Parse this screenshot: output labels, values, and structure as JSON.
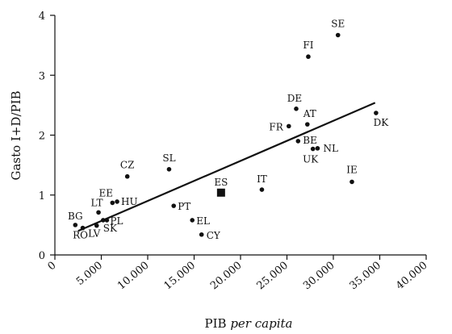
{
  "chart_data": {
    "type": "scatter",
    "title": "",
    "xlabel_main": "PIB ",
    "xlabel_italic": "per capita",
    "ylabel": "Gasto I+D/PIB",
    "xlim": [
      0,
      40000
    ],
    "ylim": [
      0,
      4
    ],
    "x_ticks": [
      0,
      5000,
      10000,
      15000,
      20000,
      25000,
      30000,
      35000,
      40000
    ],
    "x_tick_labels": [
      "0",
      "5.000",
      "10.000",
      "15.000",
      "20.000",
      "25.000",
      "30.000",
      "35.000",
      "40.000"
    ],
    "y_ticks": [
      0,
      1,
      2,
      3,
      4
    ],
    "y_tick_labels": [
      "0",
      "1",
      "2",
      "3",
      "4"
    ],
    "grid": false,
    "points": [
      {
        "label": "SE",
        "x": 30500,
        "y": 3.67
      },
      {
        "label": "FI",
        "x": 27300,
        "y": 3.31
      },
      {
        "label": "DE",
        "x": 26000,
        "y": 2.44
      },
      {
        "label": "DK",
        "x": 34600,
        "y": 2.37
      },
      {
        "label": "AT",
        "x": 27200,
        "y": 2.18
      },
      {
        "label": "FR",
        "x": 25200,
        "y": 2.15
      },
      {
        "label": "BE",
        "x": 26200,
        "y": 1.9
      },
      {
        "label": "NL",
        "x": 28300,
        "y": 1.78
      },
      {
        "label": "UK",
        "x": 27800,
        "y": 1.77
      },
      {
        "label": "IE",
        "x": 32000,
        "y": 1.22
      },
      {
        "label": "CZ",
        "x": 7800,
        "y": 1.31
      },
      {
        "label": "SL",
        "x": 12300,
        "y": 1.43
      },
      {
        "label": "IT",
        "x": 22300,
        "y": 1.09
      },
      {
        "label": "EE",
        "x": 6200,
        "y": 0.87
      },
      {
        "label": "HU",
        "x": 6700,
        "y": 0.89
      },
      {
        "label": "LT",
        "x": 4700,
        "y": 0.71
      },
      {
        "label": "PT",
        "x": 12800,
        "y": 0.82
      },
      {
        "label": "EL",
        "x": 14800,
        "y": 0.58
      },
      {
        "label": "CY",
        "x": 15800,
        "y": 0.34
      },
      {
        "label": "BG",
        "x": 2200,
        "y": 0.5
      },
      {
        "label": "RO",
        "x": 3000,
        "y": 0.45
      },
      {
        "label": "LV",
        "x": 4500,
        "y": 0.49
      },
      {
        "label": "SK",
        "x": 5200,
        "y": 0.58
      },
      {
        "label": "PL",
        "x": 5600,
        "y": 0.58
      }
    ],
    "highlight_point": {
      "label": "ES",
      "x": 17900,
      "y": 1.04
    },
    "trendline": {
      "x": [
        2500,
        34500
      ],
      "y": [
        0.4,
        2.54
      ]
    },
    "colors": {
      "marks": "#111111",
      "axis": "#111111",
      "background": "#ffffff"
    }
  }
}
